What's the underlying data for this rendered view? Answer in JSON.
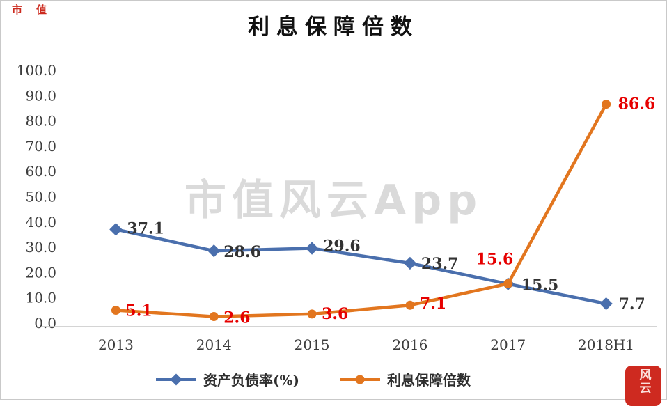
{
  "page": {
    "watermark": "市值风云App",
    "corner_marks": "市值",
    "seal_text": "风云"
  },
  "legend": [
    {
      "label": "资产负债率(%)",
      "color": "#4a6fad",
      "marker": "diamond"
    },
    {
      "label": "利息保障倍数",
      "color": "#e2761f",
      "marker": "circle"
    }
  ],
  "chart_data": {
    "type": "line",
    "title": "利息保障倍数",
    "categories": [
      "2013",
      "2014",
      "2015",
      "2016",
      "2017",
      "2018H1"
    ],
    "series": [
      {
        "name": "资产负债率(%)",
        "color": "#4a6fad",
        "label_color": "#333333",
        "marker": "diamond",
        "values": [
          37.1,
          28.6,
          29.6,
          23.7,
          15.5,
          7.7
        ]
      },
      {
        "name": "利息保障倍数",
        "color": "#e2761f",
        "label_color": "#e60000",
        "marker": "circle",
        "values": [
          5.1,
          2.6,
          3.6,
          7.1,
          15.6,
          86.6
        ]
      }
    ],
    "xlabel": "",
    "ylabel": "",
    "ylim": [
      0,
      100
    ],
    "ytick_step": 10,
    "ytick_format": "one_decimal",
    "grid": false,
    "legend_position": "bottom"
  }
}
